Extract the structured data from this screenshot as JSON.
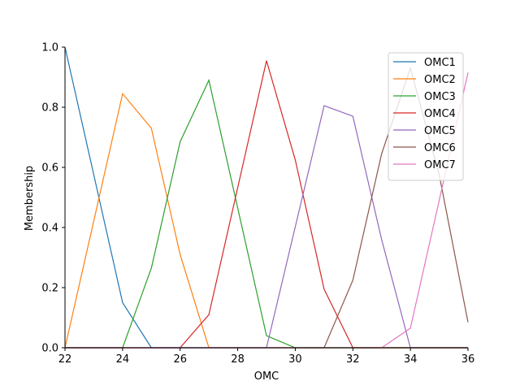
{
  "chart_data": {
    "type": "line",
    "title": "",
    "xlabel": "OMC",
    "ylabel": "Membership",
    "xlim": [
      22,
      36
    ],
    "ylim": [
      0,
      1.0
    ],
    "x_ticks": [
      22,
      24,
      26,
      28,
      30,
      32,
      34,
      36
    ],
    "y_ticks": [
      0.0,
      0.2,
      0.4,
      0.6,
      0.8,
      1.0
    ],
    "grid": false,
    "legend_position": "top-right",
    "series": [
      {
        "name": "OMC1",
        "color": "#1f77b4",
        "x": [
          22,
          24,
          25,
          26,
          36
        ],
        "y": [
          1.0,
          0.15,
          0.0,
          0.0,
          0.0
        ]
      },
      {
        "name": "OMC2",
        "color": "#ff7f0e",
        "x": [
          22,
          24,
          25,
          26,
          27,
          36
        ],
        "y": [
          0.0,
          0.845,
          0.73,
          0.31,
          0.0,
          0.0
        ]
      },
      {
        "name": "OMC3",
        "color": "#2ca02c",
        "x": [
          22,
          24,
          25,
          26,
          27,
          29,
          30,
          36
        ],
        "y": [
          0.0,
          0.0,
          0.265,
          0.685,
          0.89,
          0.04,
          0.0,
          0.0
        ]
      },
      {
        "name": "OMC4",
        "color": "#d62728",
        "x": [
          22,
          26,
          27,
          29,
          30,
          31,
          32,
          36
        ],
        "y": [
          0.0,
          0.0,
          0.11,
          0.955,
          0.625,
          0.195,
          0.0,
          0.0
        ]
      },
      {
        "name": "OMC5",
        "color": "#9467bd",
        "x": [
          22,
          29,
          31,
          32,
          33,
          34,
          36
        ],
        "y": [
          0.0,
          0.0,
          0.805,
          0.77,
          0.36,
          0.0,
          0.0
        ]
      },
      {
        "name": "OMC6",
        "color": "#8c564b",
        "x": [
          22,
          31,
          32,
          33,
          34,
          35,
          36
        ],
        "y": [
          0.0,
          0.0,
          0.225,
          0.645,
          0.93,
          0.575,
          0.085
        ]
      },
      {
        "name": "OMC7",
        "color": "#e377c2",
        "x": [
          22,
          33,
          34,
          36
        ],
        "y": [
          0.0,
          0.0,
          0.065,
          0.915
        ]
      }
    ]
  }
}
